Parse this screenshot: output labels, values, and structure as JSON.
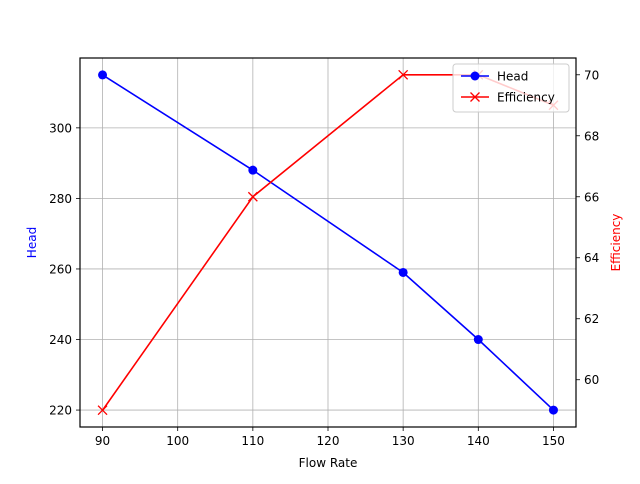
{
  "chart_data": {
    "type": "line",
    "title": "",
    "xlabel": "Flow Rate",
    "x": [
      90,
      110,
      130,
      140,
      150
    ],
    "xlim": [
      87,
      153
    ],
    "xticks": [
      90,
      100,
      110,
      120,
      130,
      140,
      150
    ],
    "grid": true,
    "legend_position": "upper right",
    "axes": {
      "left": {
        "label": "Head",
        "label_color": "#0000ff",
        "ylim": [
          215.2,
          319.8
        ],
        "ticks": [
          220,
          240,
          260,
          280,
          300
        ]
      },
      "right": {
        "label": "Efficiency",
        "label_color": "#ff0000",
        "ylim": [
          58.45,
          70.55
        ],
        "ticks": [
          60,
          62,
          64,
          66,
          68,
          70
        ]
      }
    },
    "series": [
      {
        "name": "Head",
        "axis": "left",
        "color": "#0000ff",
        "marker": "o",
        "values": [
          315,
          288,
          259,
          240,
          220
        ]
      },
      {
        "name": "Efficiency",
        "axis": "right",
        "color": "#ff0000",
        "marker": "x",
        "values": [
          59,
          66,
          70,
          70,
          69
        ]
      }
    ]
  }
}
